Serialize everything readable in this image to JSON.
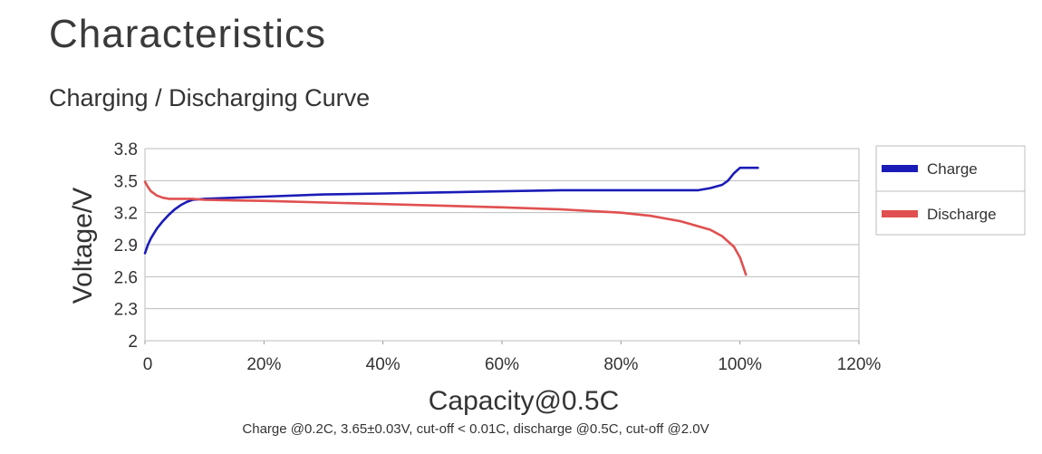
{
  "header": {
    "title": "Characteristics",
    "subtitle": "Charging / Discharging Curve"
  },
  "chart_data": {
    "type": "line",
    "title": "",
    "xlabel": "Capacity@0.5C",
    "ylabel": "Voltage/V",
    "xlim": [
      0,
      120
    ],
    "ylim": [
      2.0,
      3.8
    ],
    "x_ticks": [
      0,
      20,
      40,
      60,
      80,
      100,
      120
    ],
    "x_tick_labels": [
      "0",
      "20%",
      "40%",
      "60%",
      "80%",
      "100%",
      "120%"
    ],
    "y_ticks": [
      2.0,
      2.3,
      2.6,
      2.9,
      3.2,
      3.5,
      3.8
    ],
    "y_tick_labels": [
      "2",
      "2.3",
      "2.6",
      "2.9",
      "3.2",
      "3.5",
      "3.8"
    ],
    "grid": true,
    "legend_position": "right",
    "series": [
      {
        "name": "Charge",
        "color": "#1b1bb8",
        "x": [
          0,
          0.5,
          1,
          2,
          3,
          4,
          5,
          6,
          7,
          8,
          10,
          15,
          20,
          30,
          40,
          50,
          60,
          70,
          80,
          90,
          93,
          95,
          97,
          98,
          99,
          100,
          101,
          102,
          103
        ],
        "y": [
          2.82,
          2.9,
          2.96,
          3.05,
          3.12,
          3.18,
          3.23,
          3.27,
          3.3,
          3.32,
          3.33,
          3.34,
          3.35,
          3.37,
          3.38,
          3.39,
          3.4,
          3.41,
          3.41,
          3.41,
          3.41,
          3.43,
          3.46,
          3.5,
          3.57,
          3.62,
          3.62,
          3.62,
          3.62
        ]
      },
      {
        "name": "Discharge",
        "color": "#e05050",
        "x": [
          0,
          0.5,
          1,
          2,
          3,
          4,
          6,
          8,
          10,
          20,
          40,
          60,
          70,
          80,
          85,
          90,
          95,
          97,
          99,
          100,
          100.5,
          101
        ],
        "y": [
          3.49,
          3.44,
          3.4,
          3.36,
          3.34,
          3.33,
          3.33,
          3.33,
          3.32,
          3.31,
          3.28,
          3.25,
          3.23,
          3.2,
          3.17,
          3.12,
          3.04,
          2.98,
          2.88,
          2.78,
          2.7,
          2.62
        ]
      }
    ],
    "footnote": "Charge @0.2C, 3.65±0.03V,  cut-off < 0.01C, discharge @0.5C, cut-off @2.0V"
  }
}
